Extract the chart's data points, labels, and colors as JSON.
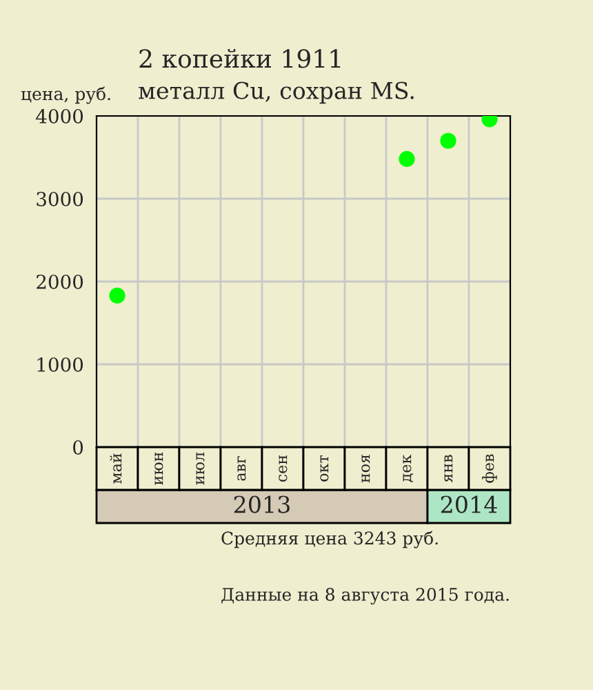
{
  "chart_data": {
    "type": "scatter",
    "title": "2 копейки 1911",
    "subtitle": "металл Cu, сохран MS.",
    "ylabel": "цена, руб.",
    "categories": [
      "май",
      "июн",
      "июл",
      "авг",
      "сен",
      "окт",
      "ноя",
      "дек",
      "янв",
      "фев"
    ],
    "series": [
      {
        "color": "#00ff00",
        "values": [
          1830,
          null,
          null,
          null,
          null,
          null,
          null,
          3480,
          3700,
          3960
        ]
      }
    ],
    "ylim": [
      0,
      4000
    ],
    "yticks": [
      0,
      1000,
      2000,
      3000,
      4000
    ],
    "grid": true,
    "marker": "circle",
    "annotations": [
      "2013",
      "2014",
      "Средняя цена 3243 руб.",
      "Данные на 8 августа 2015 года."
    ]
  }
}
